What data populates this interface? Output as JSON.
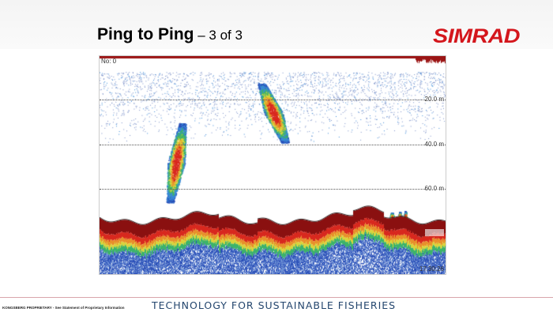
{
  "slide": {
    "title_bold": "Ping to Ping",
    "title_rest": " – 3 of 3"
  },
  "logo": "SIMRAD",
  "echogram": {
    "ping_no": "No: 0",
    "depth_labels": [
      "20.0 m",
      "40.0 m",
      "60.0 m",
      "80.0 m"
    ],
    "time": "17:30:26"
  },
  "footer": {
    "proprietary": "KONGSBERG PROPRIETARY - See Statement of Proprietary Information",
    "tagline": "TECHNOLOGY FOR SUSTAINABLE FISHERIES"
  },
  "colors": {
    "logo": "#d4161c",
    "tagline": "#24466e"
  }
}
